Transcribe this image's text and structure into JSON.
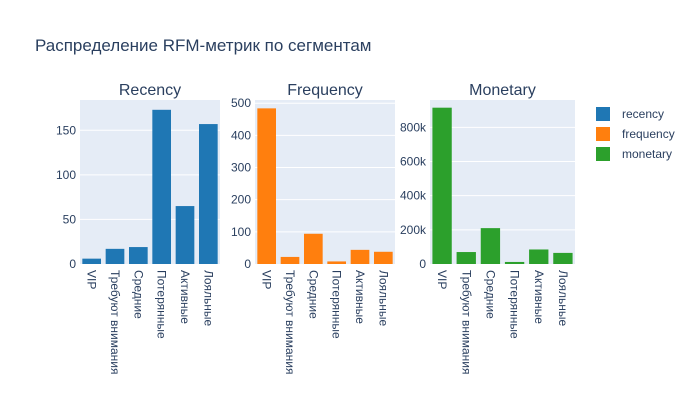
{
  "chart": {
    "title": "Распределение RFM-метрик по сегментам"
  },
  "chart_data": [
    {
      "type": "bar",
      "title": "Recency",
      "series_name": "recency",
      "color": "#1f77b4",
      "categories": [
        "VIP",
        "Требуют внимания",
        "Средние",
        "Потерянные",
        "Активные",
        "Лояльные"
      ],
      "values": [
        6,
        17,
        19,
        173,
        65,
        157
      ],
      "ylim": [
        0,
        184
      ],
      "yticks": [
        0,
        50,
        100,
        150
      ],
      "ytick_labels": [
        "0",
        "50",
        "100",
        "150"
      ],
      "grid": true
    },
    {
      "type": "bar",
      "title": "Frequency",
      "series_name": "frequency",
      "color": "#ff7f0e",
      "categories": [
        "VIP",
        "Требуют внимания",
        "Средние",
        "Потерянные",
        "Активные",
        "Лояльные"
      ],
      "values": [
        484,
        22,
        94,
        8,
        44,
        38
      ],
      "ylim": [
        0,
        510
      ],
      "yticks": [
        0,
        100,
        200,
        300,
        400,
        500
      ],
      "ytick_labels": [
        "0",
        "100",
        "200",
        "300",
        "400",
        "500"
      ],
      "grid": true
    },
    {
      "type": "bar",
      "title": "Monetary",
      "series_name": "monetary",
      "color": "#2ca02c",
      "categories": [
        "VIP",
        "Требуют внимания",
        "Средние",
        "Потерянные",
        "Активные",
        "Лояльные"
      ],
      "values": [
        915000,
        70000,
        210000,
        12000,
        85000,
        65000
      ],
      "ylim": [
        0,
        960000
      ],
      "yticks": [
        0,
        200000,
        400000,
        600000,
        800000
      ],
      "ytick_labels": [
        "0",
        "200k",
        "400k",
        "600k",
        "800k"
      ],
      "grid": true
    }
  ],
  "legend": {
    "placement": "top-right",
    "items": [
      {
        "label": "recency",
        "color": "#1f77b4"
      },
      {
        "label": "frequency",
        "color": "#ff7f0e"
      },
      {
        "label": "monetary",
        "color": "#2ca02c"
      }
    ]
  },
  "colors": {
    "plot_bg": "#e5ecf6",
    "grid": "#ffffff",
    "text": "#2a3f5f",
    "tick_text": "#2a3f5f"
  }
}
